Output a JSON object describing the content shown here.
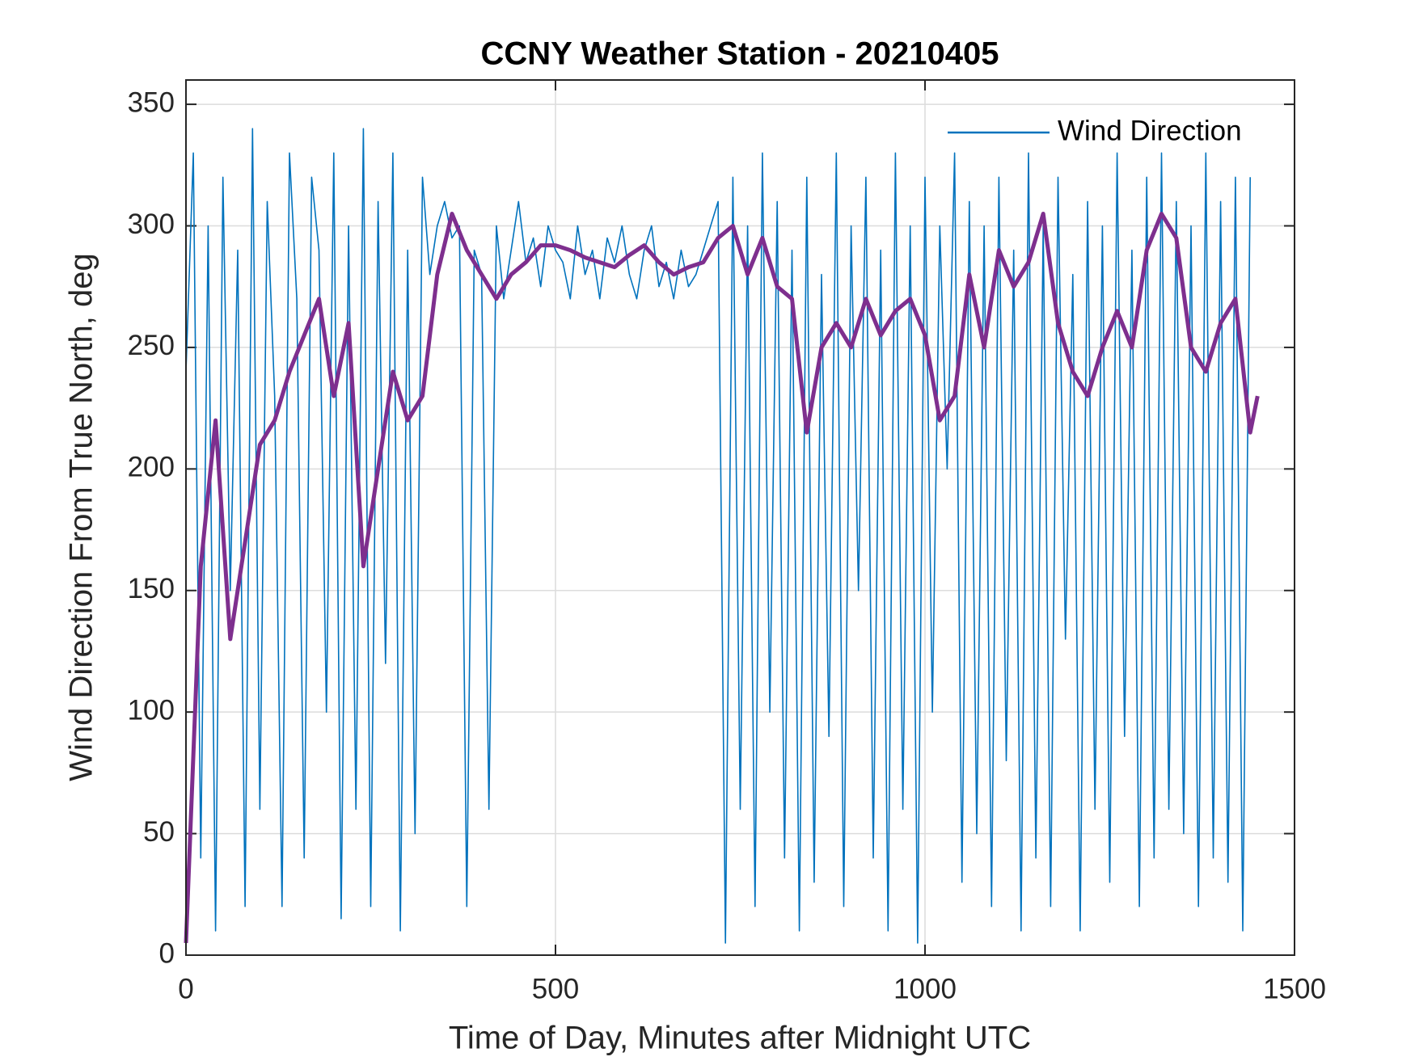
{
  "chart_data": {
    "type": "line",
    "title": "CCNY Weather Station - 20210405",
    "x_label": "Time of Day, Minutes after Midnight UTC",
    "y_label": "Wind Direction From True North, deg",
    "xlim": [
      0,
      1500
    ],
    "xticks": [
      0,
      500,
      1000,
      1500
    ],
    "ylim": [
      0,
      360
    ],
    "yticks": [
      0,
      50,
      100,
      150,
      200,
      250,
      300,
      350
    ],
    "grid": true,
    "legend": "northeast",
    "series": [
      {
        "name": "Wind Direction",
        "color": "#0072bd",
        "x": [
          0,
          10,
          20,
          30,
          40,
          50,
          60,
          70,
          80,
          90,
          100,
          110,
          120,
          130,
          140,
          150,
          160,
          170,
          180,
          190,
          200,
          210,
          220,
          230,
          240,
          250,
          260,
          270,
          280,
          290,
          300,
          310,
          320,
          330,
          340,
          350,
          360,
          370,
          380,
          390,
          400,
          410,
          420,
          430,
          440,
          450,
          460,
          470,
          480,
          490,
          500,
          510,
          520,
          530,
          540,
          550,
          560,
          570,
          580,
          590,
          600,
          610,
          620,
          630,
          640,
          650,
          660,
          670,
          680,
          690,
          700,
          710,
          720,
          730,
          740,
          750,
          760,
          770,
          780,
          790,
          800,
          810,
          820,
          830,
          840,
          850,
          860,
          870,
          880,
          890,
          900,
          910,
          920,
          930,
          940,
          950,
          960,
          970,
          980,
          990,
          1000,
          1010,
          1020,
          1030,
          1040,
          1050,
          1060,
          1070,
          1080,
          1090,
          1100,
          1110,
          1120,
          1130,
          1140,
          1150,
          1160,
          1170,
          1180,
          1190,
          1200,
          1210,
          1220,
          1230,
          1240,
          1250,
          1260,
          1270,
          1280,
          1290,
          1300,
          1310,
          1320,
          1330,
          1340,
          1350,
          1360,
          1370,
          1380,
          1390,
          1400,
          1410,
          1420,
          1430,
          1440
        ],
        "values": [
          240,
          330,
          40,
          300,
          10,
          320,
          150,
          290,
          20,
          340,
          60,
          310,
          230,
          20,
          330,
          270,
          40,
          320,
          290,
          100,
          330,
          15,
          300,
          60,
          340,
          20,
          310,
          120,
          330,
          10,
          290,
          50,
          320,
          280,
          300,
          310,
          295,
          300,
          20,
          290,
          280,
          60,
          300,
          270,
          290,
          310,
          285,
          295,
          275,
          300,
          290,
          285,
          270,
          300,
          280,
          290,
          270,
          295,
          285,
          300,
          280,
          270,
          290,
          300,
          275,
          285,
          270,
          290,
          275,
          280,
          290,
          300,
          310,
          5,
          320,
          60,
          300,
          20,
          330,
          100,
          310,
          40,
          290,
          10,
          320,
          30,
          280,
          90,
          330,
          20,
          300,
          150,
          320,
          40,
          290,
          10,
          330,
          60,
          300,
          5,
          320,
          100,
          300,
          200,
          330,
          30,
          310,
          50,
          300,
          20,
          320,
          80,
          290,
          10,
          330,
          40,
          300,
          20,
          320,
          130,
          280,
          10,
          310,
          60,
          300,
          30,
          330,
          90,
          290,
          20,
          320,
          40,
          330,
          60,
          310,
          50,
          300,
          20,
          330,
          40,
          310,
          30,
          320,
          10,
          320
        ]
      },
      {
        "color": "#7e2f8e",
        "x": [
          0,
          20,
          40,
          60,
          80,
          100,
          120,
          140,
          160,
          180,
          200,
          220,
          240,
          260,
          280,
          300,
          320,
          340,
          360,
          380,
          400,
          420,
          440,
          460,
          480,
          500,
          520,
          540,
          560,
          580,
          600,
          620,
          640,
          660,
          680,
          700,
          720,
          740,
          760,
          780,
          800,
          820,
          840,
          860,
          880,
          900,
          920,
          940,
          960,
          980,
          1000,
          1020,
          1040,
          1060,
          1080,
          1100,
          1120,
          1140,
          1160,
          1180,
          1200,
          1220,
          1240,
          1260,
          1280,
          1300,
          1320,
          1340,
          1360,
          1380,
          1400,
          1420,
          1440,
          1450
        ],
        "values": [
          5,
          160,
          220,
          130,
          170,
          210,
          220,
          240,
          255,
          270,
          230,
          260,
          160,
          200,
          240,
          220,
          230,
          280,
          305,
          290,
          280,
          270,
          280,
          285,
          292,
          292,
          290,
          287,
          285,
          283,
          288,
          292,
          285,
          280,
          283,
          285,
          295,
          300,
          280,
          295,
          275,
          270,
          215,
          250,
          260,
          250,
          270,
          255,
          265,
          270,
          255,
          220,
          230,
          280,
          250,
          290,
          275,
          285,
          305,
          260,
          240,
          230,
          250,
          265,
          250,
          290,
          305,
          295,
          250,
          240,
          260,
          270,
          215,
          230
        ]
      }
    ]
  }
}
